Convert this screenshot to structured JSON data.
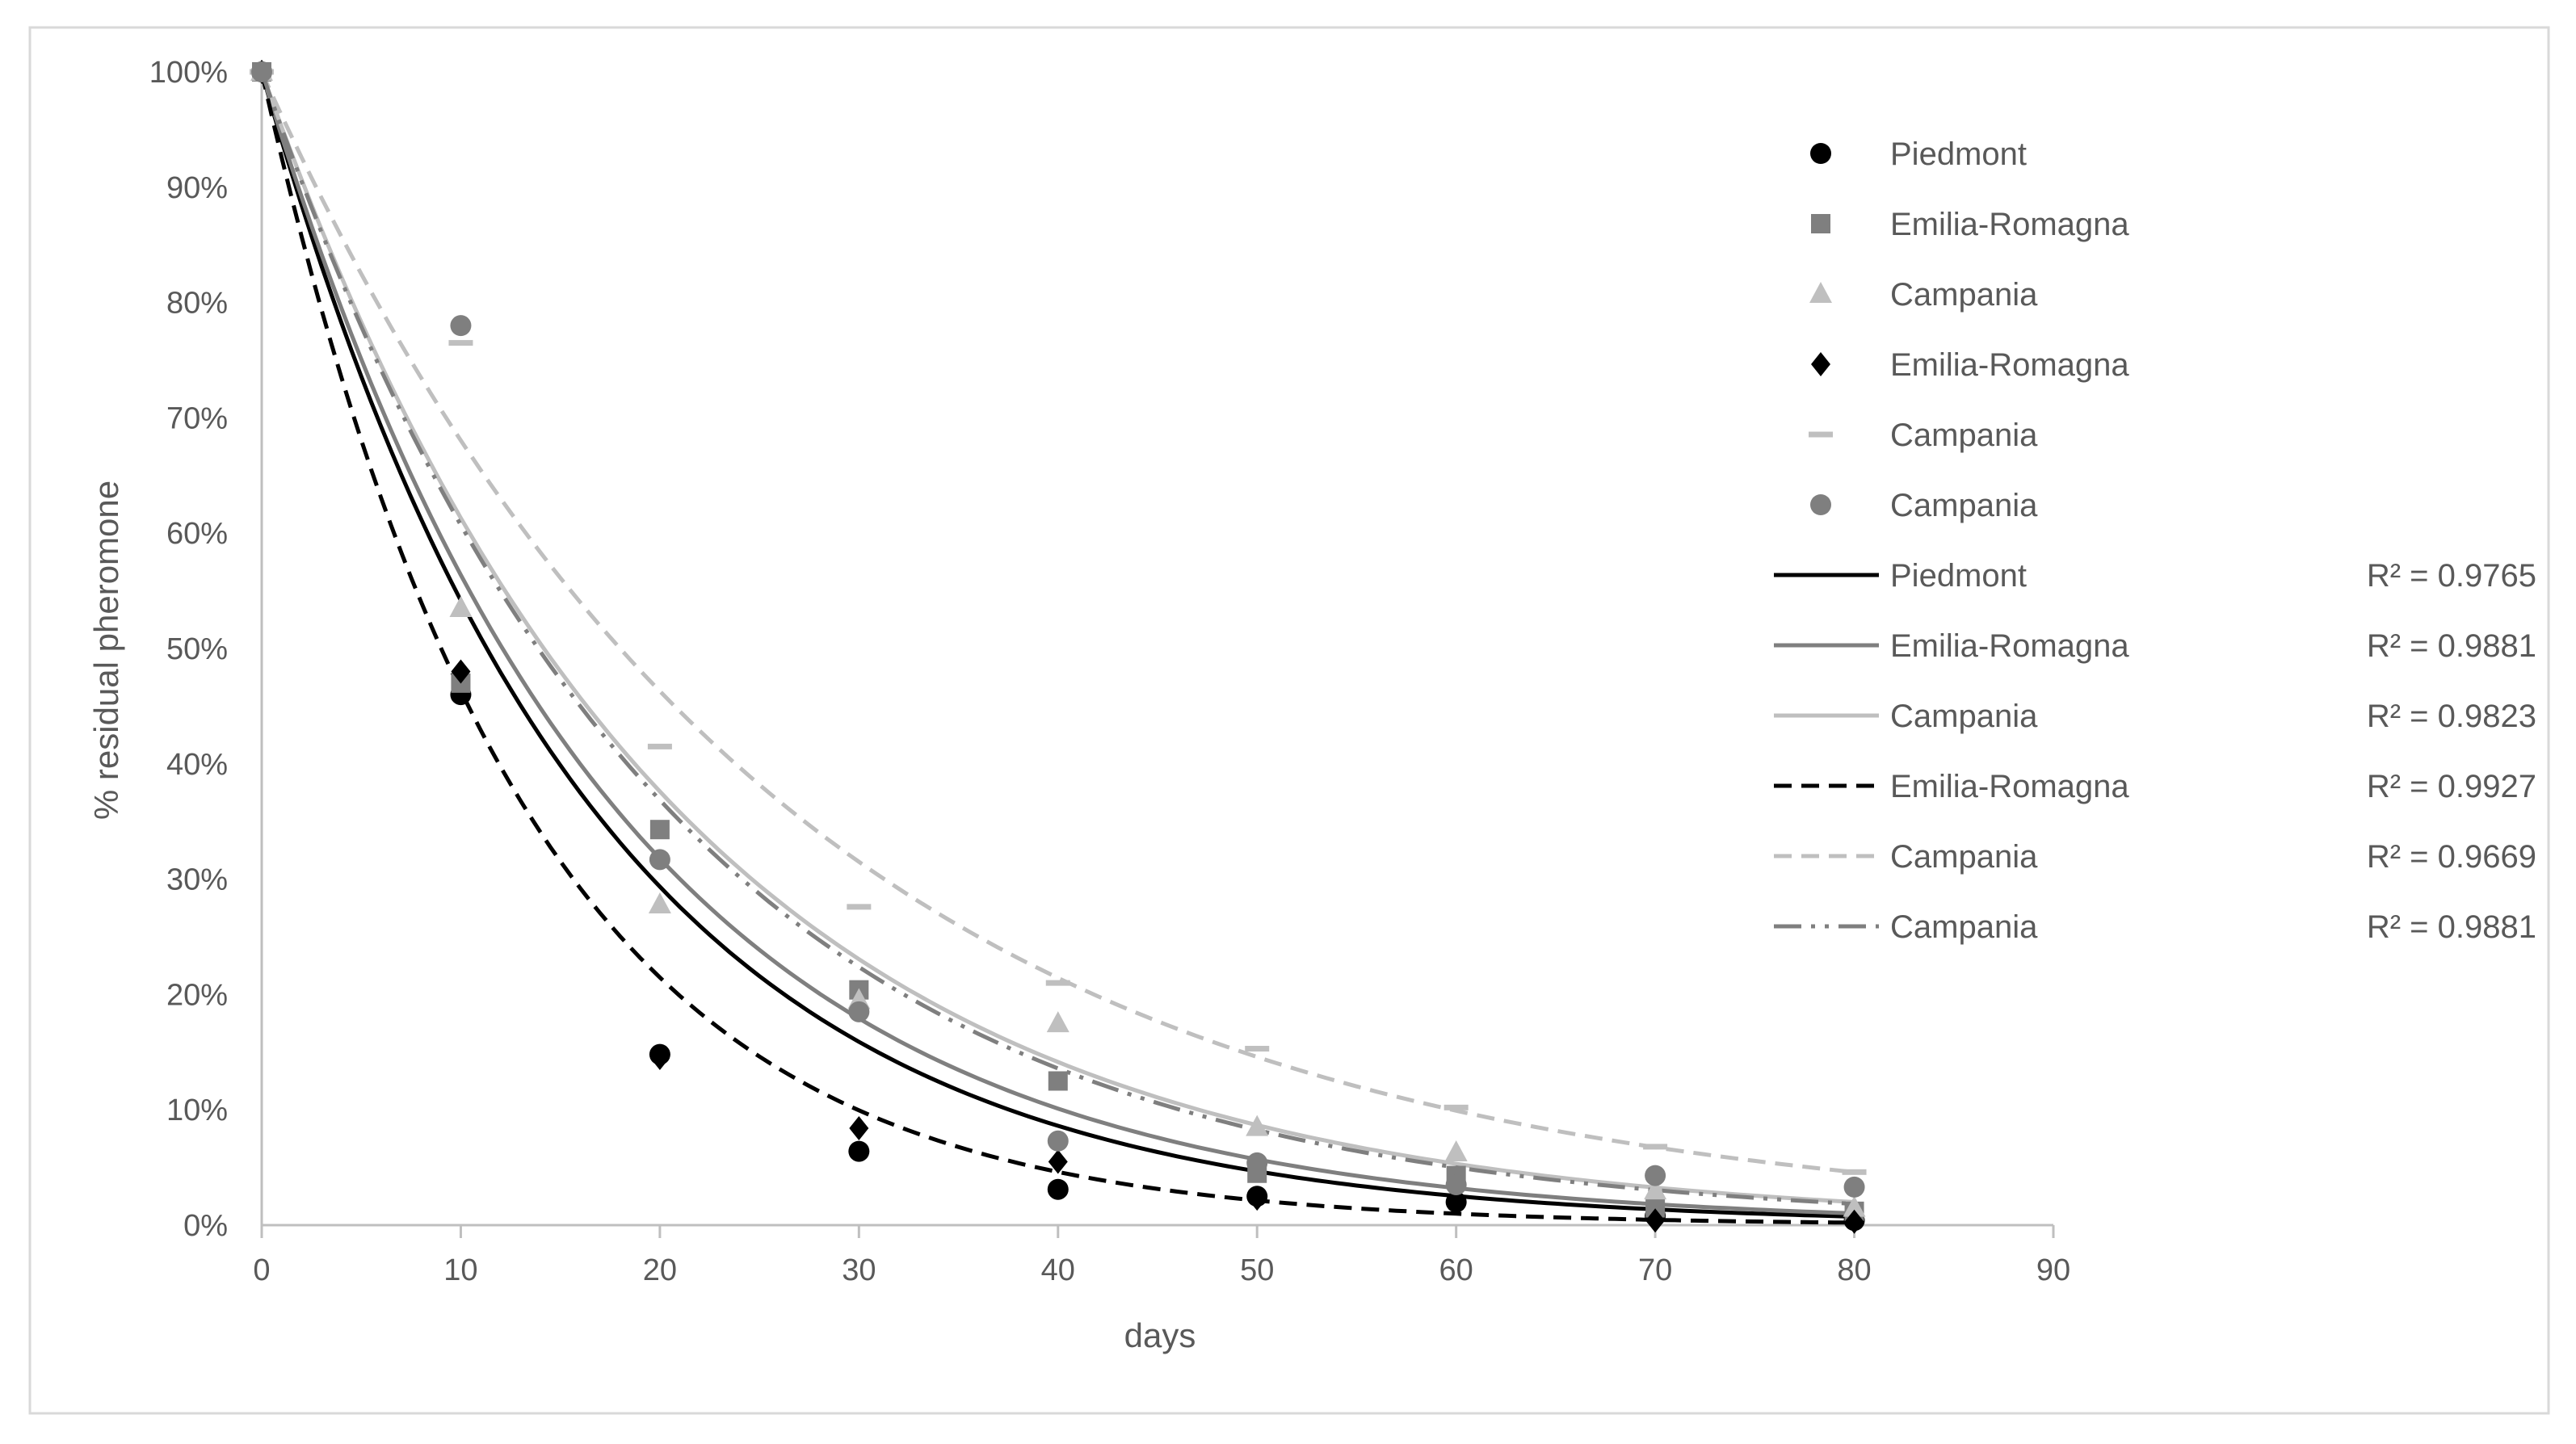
{
  "chart_data": {
    "type": "scatter",
    "xlabel": "days",
    "ylabel": "% residual pheromone",
    "xlim": [
      0,
      90
    ],
    "ylim": [
      0,
      100
    ],
    "x_ticks": [
      "0",
      "10",
      "20",
      "30",
      "40",
      "50",
      "60",
      "70",
      "80",
      "90"
    ],
    "y_ticks": [
      "0%",
      "10%",
      "20%",
      "30%",
      "40%",
      "50%",
      "60%",
      "70%",
      "80%",
      "90%",
      "100%"
    ],
    "x": [
      0,
      10,
      20,
      30,
      40,
      50,
      60,
      70,
      80
    ],
    "series": [
      {
        "name": "Piedmont",
        "marker": "circle",
        "color": "#000000",
        "values": [
          100,
          46,
          14.8,
          6.4,
          3.1,
          2.5,
          2.0,
          0.8,
          0.4
        ],
        "trend": {
          "name": "Piedmont",
          "k": 0.0613,
          "style": "solid",
          "color": "#000000",
          "r2": "R² = 0.9765"
        }
      },
      {
        "name": "Emilia-Romagna",
        "marker": "square",
        "color": "#7f7f7f",
        "values": [
          100,
          47,
          34.3,
          20.4,
          12.5,
          4.5,
          4.3,
          1.5,
          1.2
        ],
        "trend": {
          "name": "Emilia-Romagna",
          "k": 0.0573,
          "style": "solid",
          "color": "#7f7f7f",
          "r2": "R² = 0.9881"
        }
      },
      {
        "name": "Campania",
        "marker": "triangle",
        "color": "#bfbfbf",
        "values": [
          100,
          53.5,
          27.8,
          19.5,
          17.5,
          8.5,
          6.3,
          3.0,
          1.5
        ],
        "trend": {
          "name": "Campania",
          "k": 0.0489,
          "style": "solid",
          "color": "#bfbfbf",
          "r2": "R² = 0.9823"
        }
      },
      {
        "name": "Emilia-Romagna",
        "marker": "diamond",
        "color": "#000000",
        "values": [
          100,
          48,
          14.5,
          8.4,
          5.5,
          2.3,
          2.2,
          0.4,
          0.3
        ],
        "trend": {
          "name": "Emilia-Romagna",
          "k": 0.0769,
          "style": "dashed",
          "color": "#000000",
          "r2": "R² = 0.9927"
        }
      },
      {
        "name": "Campania",
        "marker": "dash",
        "color": "#bfbfbf",
        "values": [
          100,
          76.5,
          41.5,
          27.6,
          21,
          15.3,
          10.2,
          6.8,
          4.6
        ],
        "trend": {
          "name": "Campania",
          "k": 0.0385,
          "style": "dashed",
          "color": "#bfbfbf",
          "r2": "R² = 0.9669"
        }
      },
      {
        "name": "Campania",
        "marker": "circle",
        "color": "#7f7f7f",
        "values": [
          100,
          78,
          31.7,
          18.5,
          7.3,
          5.4,
          3.5,
          4.3,
          3.3
        ],
        "trend": {
          "name": "Campania",
          "k": 0.0499,
          "style": "dashdotdot",
          "color": "#7f7f7f",
          "r2": "R² = 0.9881"
        }
      }
    ]
  }
}
